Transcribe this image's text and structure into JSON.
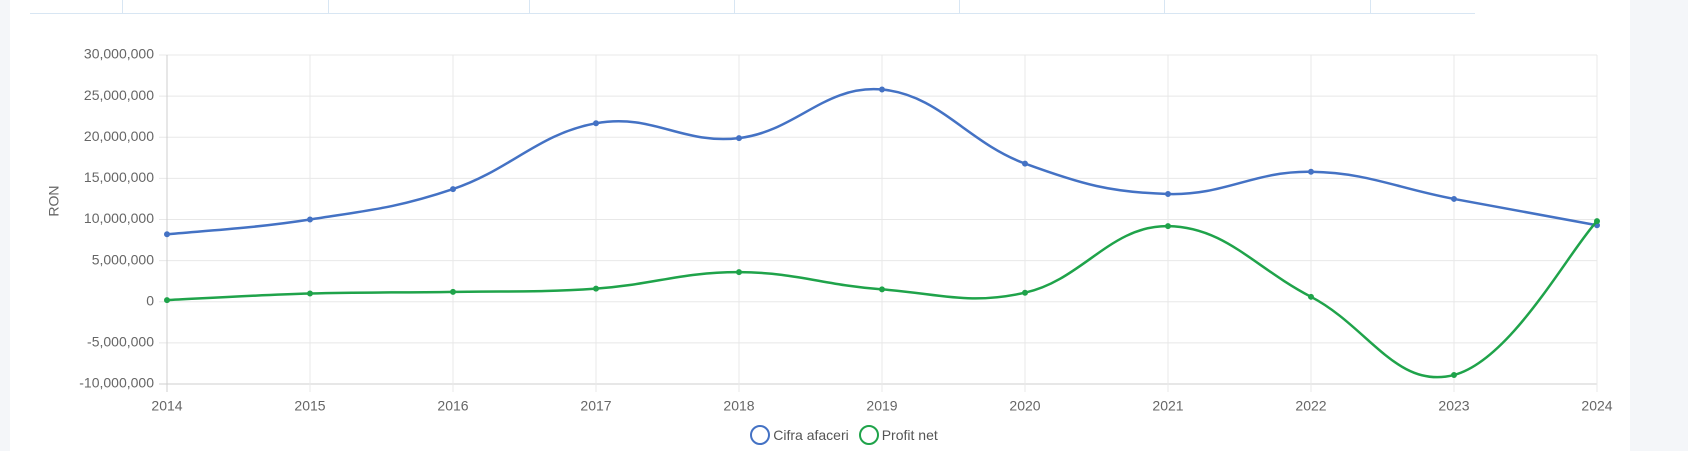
{
  "chart_data": {
    "type": "line",
    "title": "",
    "xlabel": "",
    "ylabel": "RON",
    "x": [
      "2014",
      "2015",
      "2016",
      "2017",
      "2018",
      "2019",
      "2020",
      "2021",
      "2022",
      "2023",
      "2024"
    ],
    "ylim": [
      -10000000,
      30000000
    ],
    "yticks": [
      30000000,
      25000000,
      20000000,
      15000000,
      10000000,
      5000000,
      0,
      -5000000,
      -10000000
    ],
    "ytick_labels": [
      "30,000,000",
      "25,000,000",
      "20,000,000",
      "15,000,000",
      "10,000,000",
      "5,000,000",
      "0",
      "-5,000,000",
      "-10,000,000"
    ],
    "grid": true,
    "legend_position": "bottom",
    "series": [
      {
        "name": "Cifra afaceri",
        "color": "#4472c4",
        "values": [
          8200000,
          10000000,
          13700000,
          21700000,
          19900000,
          25800000,
          16800000,
          13100000,
          15800000,
          12500000,
          9300000
        ]
      },
      {
        "name": "Profit net",
        "color": "#1fa34a",
        "values": [
          200000,
          1000000,
          1200000,
          1600000,
          3600000,
          1500000,
          1100000,
          9200000,
          600000,
          -8900000,
          9800000
        ]
      }
    ]
  }
}
